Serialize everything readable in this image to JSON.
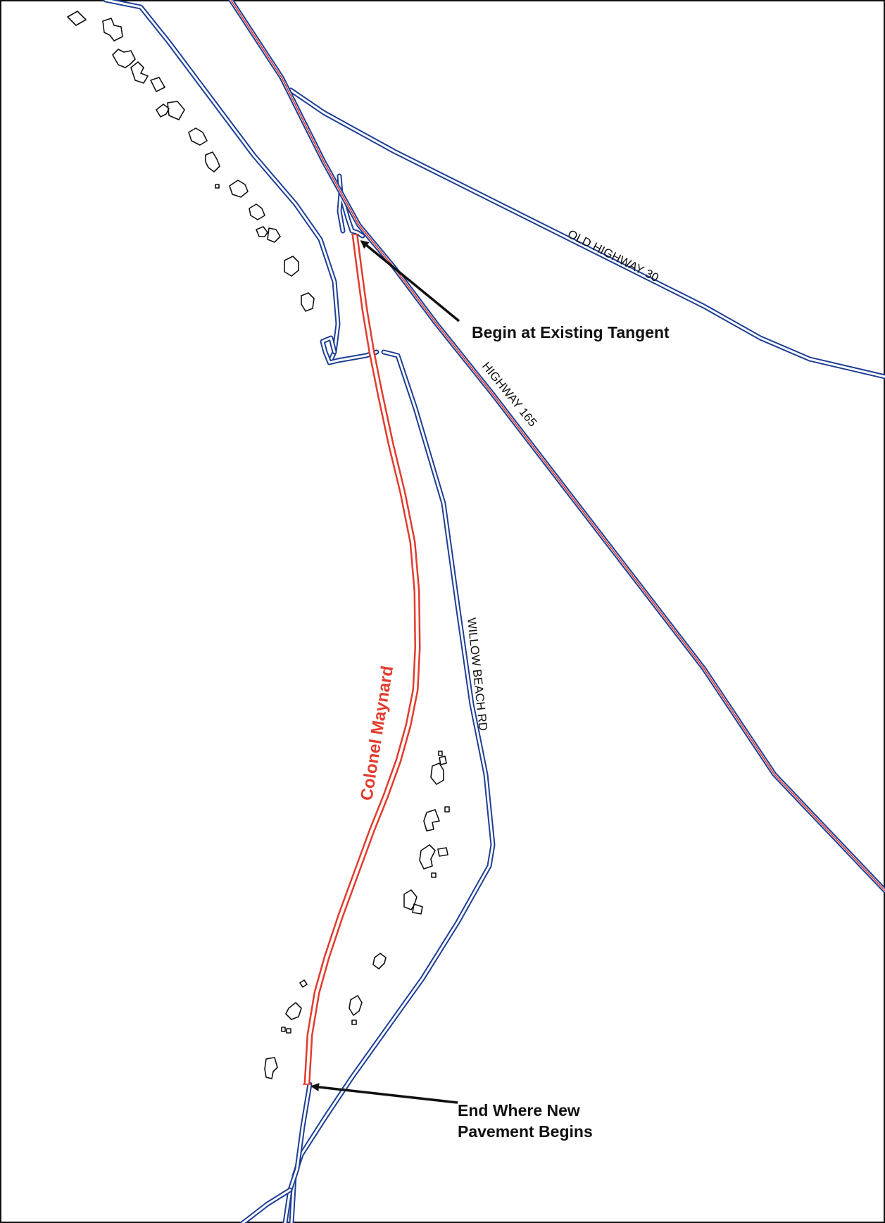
{
  "map": {
    "roads": {
      "old_highway_30": "OLD HIGHWAY 30",
      "highway_165": "HIGHWAY 165",
      "willow_beach_rd": "WILLOW BEACH RD"
    },
    "project_road": "Colonel Maynard",
    "callouts": {
      "begin": "Begin at Existing Tangent",
      "end_line1": "End Where New",
      "end_line2": "Pavement Begins"
    },
    "colors": {
      "road": "#1f3f95",
      "project": "#e23b2e",
      "building": "#111111"
    }
  }
}
